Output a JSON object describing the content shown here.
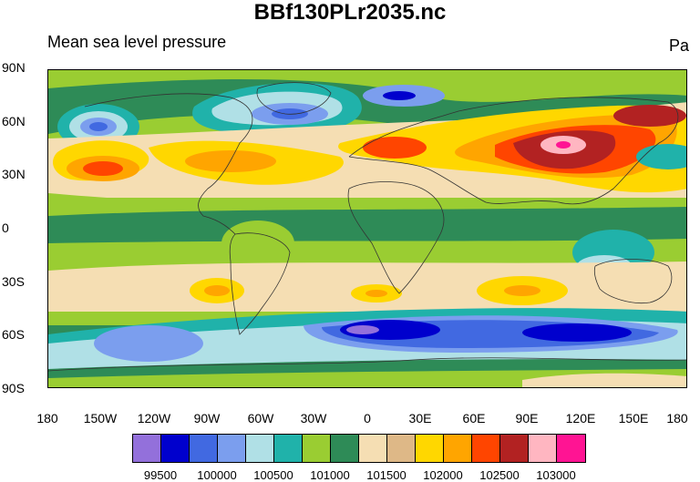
{
  "title": "BBf130PLr2035.nc",
  "subtitle": "Mean sea level pressure",
  "units": "Pa",
  "axes": {
    "lat_labels": [
      "90N",
      "60N",
      "30N",
      "0",
      "30S",
      "60S",
      "90S"
    ],
    "lon_labels": [
      "180",
      "150W",
      "120W",
      "90W",
      "60W",
      "30W",
      "0",
      "30E",
      "60E",
      "90E",
      "120E",
      "150E",
      "180"
    ]
  },
  "colorbar": {
    "colors": [
      "#9370DB",
      "#0000CD",
      "#4169E1",
      "#7B9EEE",
      "#B0E0E6",
      "#20B2AA",
      "#9ACD32",
      "#2E8B57",
      "#F5DEB3",
      "#DEB887",
      "#FFD700",
      "#FFA500",
      "#FF4500",
      "#B22222",
      "#FFB6C1",
      "#FF1493"
    ],
    "labels": [
      "99500",
      "100000",
      "100500",
      "101000",
      "101500",
      "102000",
      "102500",
      "103000"
    ]
  },
  "map_fields": [
    {
      "name": "aleutian-low",
      "color_index": 3
    },
    {
      "name": "icelandic-low",
      "color_index": 2
    },
    {
      "name": "siberian-high",
      "color_index": 14
    },
    {
      "name": "southern-ocean-low",
      "color_index": 1
    }
  ]
}
